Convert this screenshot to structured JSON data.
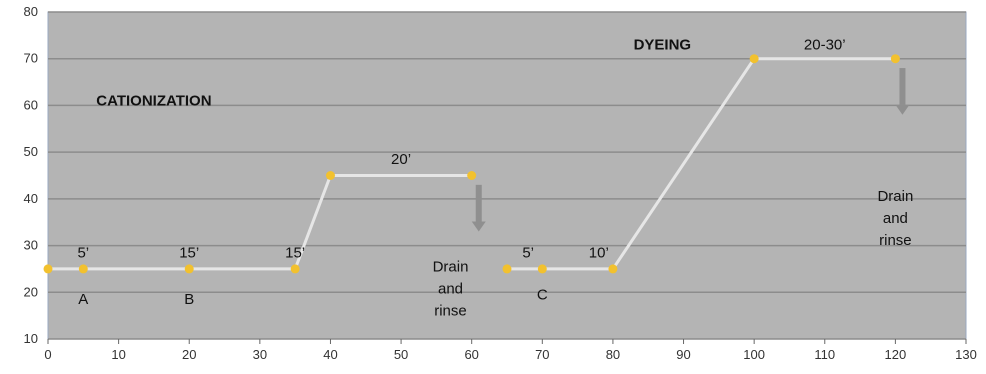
{
  "chart_data": {
    "type": "line",
    "title": "",
    "xlabel": "",
    "ylabel": "",
    "xlim": [
      0,
      130
    ],
    "ylim": [
      10,
      80
    ],
    "xticks": [
      "0",
      "10",
      "20",
      "30",
      "40",
      "50",
      "60",
      "70",
      "80",
      "90",
      "100",
      "110",
      "120",
      "130"
    ],
    "yticks": [
      "10",
      "20",
      "30",
      "40",
      "50",
      "60",
      "70",
      "80"
    ],
    "grid": "horizontal",
    "colors": {
      "plot_background": "#b4b4b4",
      "line": "#e6e6e6",
      "marker": "#f2c12e",
      "gridline": "#8c8c8c",
      "arrow": "#8f8f8f"
    },
    "series": [
      {
        "x": [
          0,
          5,
          20,
          35,
          40,
          60
        ],
        "y": [
          25,
          25,
          25,
          25,
          45,
          45
        ]
      },
      {
        "x": [
          65,
          70,
          80,
          100,
          120
        ],
        "y": [
          25,
          25,
          25,
          70,
          70
        ]
      }
    ],
    "annotations": [
      {
        "id": "cationization",
        "lines": [
          "CATIONIZATION"
        ],
        "x": 15,
        "y": 60,
        "bold": true
      },
      {
        "id": "dyeing",
        "lines": [
          "DYEING"
        ],
        "x": 87,
        "y": 72,
        "bold": true
      },
      {
        "id": "t5a",
        "lines": [
          "5’"
        ],
        "x": 5,
        "y": 27.5,
        "bold": false
      },
      {
        "id": "t15a",
        "lines": [
          "15’"
        ],
        "x": 20,
        "y": 27.5,
        "bold": false
      },
      {
        "id": "t15b",
        "lines": [
          "15’"
        ],
        "x": 35,
        "y": 27.5,
        "bold": false
      },
      {
        "id": "t20",
        "lines": [
          "20’"
        ],
        "x": 50,
        "y": 47.5,
        "bold": false
      },
      {
        "id": "t5b",
        "lines": [
          "5’"
        ],
        "x": 68,
        "y": 27.5,
        "bold": false
      },
      {
        "id": "t10",
        "lines": [
          "10’"
        ],
        "x": 78,
        "y": 27.5,
        "bold": false
      },
      {
        "id": "t2030",
        "lines": [
          "20-30’"
        ],
        "x": 110,
        "y": 72,
        "bold": false
      },
      {
        "id": "labelA",
        "lines": [
          "A"
        ],
        "x": 5,
        "y": 17.5,
        "bold": false
      },
      {
        "id": "labelB",
        "lines": [
          "B"
        ],
        "x": 20,
        "y": 17.5,
        "bold": false
      },
      {
        "id": "labelC",
        "lines": [
          "C"
        ],
        "x": 70,
        "y": 18.5,
        "bold": false
      },
      {
        "id": "drain1",
        "lines": [
          "Drain",
          "and",
          "rinse"
        ],
        "x": 57,
        "y": 24.5,
        "bold": false
      },
      {
        "id": "drain2",
        "lines": [
          "Drain",
          "and",
          "rinse"
        ],
        "x": 120,
        "y": 39.5,
        "bold": false
      }
    ],
    "arrows": [
      {
        "x": 61,
        "y_from": 43,
        "y_to": 33
      },
      {
        "x": 121,
        "y_from": 68,
        "y_to": 58
      }
    ]
  }
}
